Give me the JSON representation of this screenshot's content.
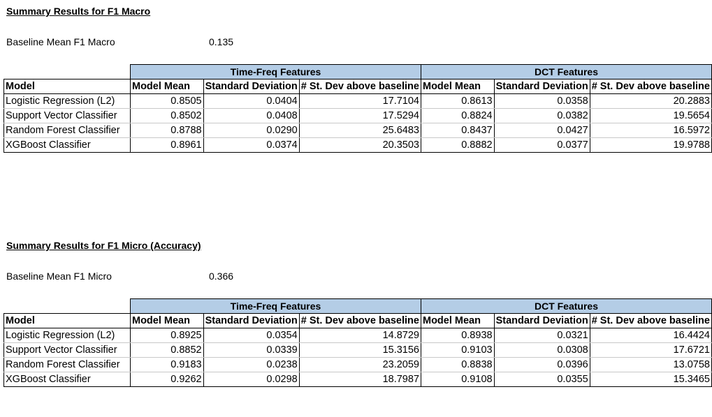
{
  "sections": [
    {
      "title": "Summary Results for F1 Macro",
      "baseline_label": "Baseline Mean F1 Macro",
      "baseline_value": "0.135",
      "groups": [
        "Time-Freq Features",
        "DCT Features"
      ],
      "headers": [
        "Model",
        "Model Mean",
        "Standard Deviation",
        "# St. Dev above baseline",
        "Model Mean",
        "Standard Deviation",
        "# St. Dev above baseline"
      ],
      "rows": [
        [
          "Logistic Regression (L2)",
          "0.8505",
          "0.0404",
          "17.7104",
          "0.8613",
          "0.0358",
          "20.2883"
        ],
        [
          "Support Vector Classifier",
          "0.8502",
          "0.0408",
          "17.5294",
          "0.8824",
          "0.0382",
          "19.5654"
        ],
        [
          "Random Forest Classifier",
          "0.8788",
          "0.0290",
          "25.6483",
          "0.8437",
          "0.0427",
          "16.5972"
        ],
        [
          "XGBoost Classifier",
          "0.8961",
          "0.0374",
          "20.3503",
          "0.8882",
          "0.0377",
          "19.9788"
        ]
      ]
    },
    {
      "title": "Summary Results for F1 Micro (Accuracy)",
      "baseline_label": "Baseline Mean F1 Micro",
      "baseline_value": "0.366",
      "groups": [
        "Time-Freq Features",
        "DCT Features"
      ],
      "headers": [
        "Model",
        "Model Mean",
        "Standard Deviation",
        "# St. Dev above baseline",
        "Model Mean",
        "Standard Deviation",
        "# St. Dev above baseline"
      ],
      "rows": [
        [
          "Logistic Regression (L2)",
          "0.8925",
          "0.0354",
          "14.8729",
          "0.8938",
          "0.0321",
          "16.4424"
        ],
        [
          "Support Vector Classifier",
          "0.8852",
          "0.0339",
          "15.3156",
          "0.9103",
          "0.0308",
          "17.6721"
        ],
        [
          "Random Forest Classifier",
          "0.9183",
          "0.0238",
          "23.2059",
          "0.8838",
          "0.0396",
          "13.0758"
        ],
        [
          "XGBoost Classifier",
          "0.9262",
          "0.0298",
          "18.7987",
          "0.9108",
          "0.0355",
          "15.3465"
        ]
      ]
    }
  ]
}
